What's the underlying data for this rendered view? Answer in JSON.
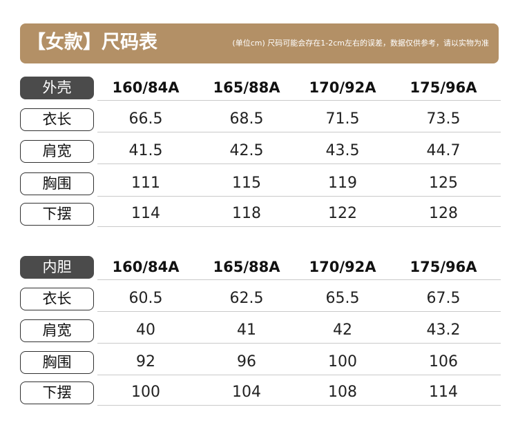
{
  "banner": {
    "title": "【女款】尺码表",
    "note": "(单位cm) 尺码可能会存在1-2cm左右的误差，数据仅供参考，请以实物为准",
    "color": "#b39066"
  },
  "sizes": [
    "160/84A",
    "165/88A",
    "170/92A",
    "175/96A"
  ],
  "outer": {
    "label": "外壳",
    "rows": [
      {
        "label": "衣长",
        "values": [
          "66.5",
          "68.5",
          "71.5",
          "73.5"
        ]
      },
      {
        "label": "肩宽",
        "values": [
          "41.5",
          "42.5",
          "43.5",
          "44.7"
        ]
      },
      {
        "label": "胸围",
        "values": [
          "111",
          "115",
          "119",
          "125"
        ]
      },
      {
        "label": "下摆",
        "values": [
          "114",
          "118",
          "122",
          "128"
        ]
      }
    ]
  },
  "inner": {
    "label": "内胆",
    "rows": [
      {
        "label": "衣长",
        "values": [
          "60.5",
          "62.5",
          "65.5",
          "67.5"
        ]
      },
      {
        "label": "肩宽",
        "values": [
          "40",
          "41",
          "42",
          "43.2"
        ]
      },
      {
        "label": "胸围",
        "values": [
          "92",
          "96",
          "100",
          "106"
        ]
      },
      {
        "label": "下摆",
        "values": [
          "100",
          "104",
          "108",
          "114"
        ]
      }
    ]
  }
}
